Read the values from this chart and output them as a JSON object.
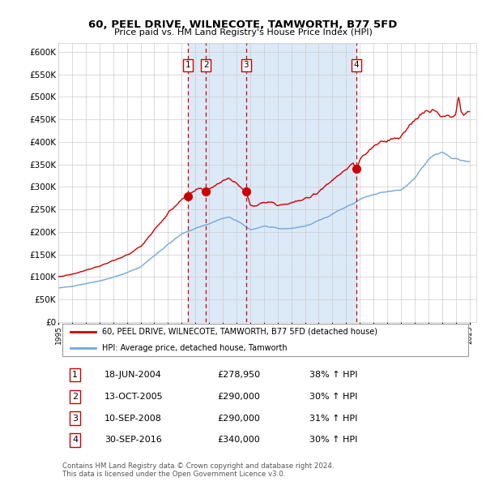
{
  "title": "60, PEEL DRIVE, WILNECOTE, TAMWORTH, B77 5FD",
  "subtitle": "Price paid vs. HM Land Registry's House Price Index (HPI)",
  "ylabel_ticks": [
    "£0",
    "£50K",
    "£100K",
    "£150K",
    "£200K",
    "£250K",
    "£300K",
    "£350K",
    "£400K",
    "£450K",
    "£500K",
    "£550K",
    "£600K"
  ],
  "ylim": [
    0,
    620000
  ],
  "yticks": [
    0,
    50000,
    100000,
    150000,
    200000,
    250000,
    300000,
    350000,
    400000,
    450000,
    500000,
    550000,
    600000
  ],
  "legend_line1": "60, PEEL DRIVE, WILNECOTE, TAMWORTH, B77 5FD (detached house)",
  "legend_line2": "HPI: Average price, detached house, Tamworth",
  "transactions": [
    {
      "num": 1,
      "date": "18-JUN-2004",
      "price": 278950,
      "pct": "38%",
      "dir": "↑"
    },
    {
      "num": 2,
      "date": "13-OCT-2005",
      "price": 290000,
      "pct": "30%",
      "dir": "↑"
    },
    {
      "num": 3,
      "date": "10-SEP-2008",
      "price": 290000,
      "pct": "31%",
      "dir": "↑"
    },
    {
      "num": 4,
      "date": "30-SEP-2016",
      "price": 340000,
      "pct": "30%",
      "dir": "↑"
    }
  ],
  "transaction_dates_decimal": [
    2004.46,
    2005.78,
    2008.69,
    2016.75
  ],
  "hpi_color": "#6fa8dc",
  "price_color": "#cc0000",
  "shaded_region_color": "#dce9f7",
  "dashed_line_color": "#cc0000",
  "background_color": "#ffffff",
  "grid_color": "#cccccc",
  "footer": "Contains HM Land Registry data © Crown copyright and database right 2024.\nThis data is licensed under the Open Government Licence v3.0.",
  "hpi_keypoints": [
    [
      1995.0,
      75000
    ],
    [
      1996.0,
      79000
    ],
    [
      1997.0,
      85000
    ],
    [
      1998.0,
      91000
    ],
    [
      1999.0,
      99000
    ],
    [
      2000.0,
      109000
    ],
    [
      2001.0,
      122000
    ],
    [
      2002.0,
      147000
    ],
    [
      2003.0,
      172000
    ],
    [
      2004.0,
      195000
    ],
    [
      2005.0,
      208000
    ],
    [
      2006.0,
      218000
    ],
    [
      2007.0,
      230000
    ],
    [
      2007.5,
      232000
    ],
    [
      2008.0,
      225000
    ],
    [
      2008.5,
      215000
    ],
    [
      2009.0,
      205000
    ],
    [
      2009.5,
      208000
    ],
    [
      2010.0,
      213000
    ],
    [
      2010.5,
      210000
    ],
    [
      2011.0,
      207000
    ],
    [
      2011.5,
      207000
    ],
    [
      2012.0,
      208000
    ],
    [
      2012.5,
      210000
    ],
    [
      2013.0,
      213000
    ],
    [
      2013.5,
      218000
    ],
    [
      2014.0,
      225000
    ],
    [
      2014.5,
      232000
    ],
    [
      2015.0,
      240000
    ],
    [
      2015.5,
      248000
    ],
    [
      2016.0,
      255000
    ],
    [
      2016.5,
      262000
    ],
    [
      2017.0,
      272000
    ],
    [
      2017.5,
      278000
    ],
    [
      2018.0,
      282000
    ],
    [
      2018.5,
      286000
    ],
    [
      2019.0,
      289000
    ],
    [
      2019.5,
      291000
    ],
    [
      2020.0,
      293000
    ],
    [
      2020.5,
      305000
    ],
    [
      2021.0,
      320000
    ],
    [
      2021.5,
      340000
    ],
    [
      2022.0,
      360000
    ],
    [
      2022.5,
      372000
    ],
    [
      2023.0,
      375000
    ],
    [
      2023.5,
      368000
    ],
    [
      2024.0,
      362000
    ],
    [
      2024.5,
      358000
    ],
    [
      2025.0,
      355000
    ]
  ],
  "red_keypoints": [
    [
      1995.0,
      100000
    ],
    [
      1996.0,
      106000
    ],
    [
      1997.0,
      115000
    ],
    [
      1998.0,
      124000
    ],
    [
      1999.0,
      135000
    ],
    [
      2000.0,
      148000
    ],
    [
      2001.0,
      167000
    ],
    [
      2002.0,
      204000
    ],
    [
      2003.0,
      240000
    ],
    [
      2003.5,
      258000
    ],
    [
      2004.0,
      270000
    ],
    [
      2004.46,
      278950
    ],
    [
      2004.7,
      285000
    ],
    [
      2005.0,
      290000
    ],
    [
      2005.4,
      298000
    ],
    [
      2005.78,
      290000
    ],
    [
      2006.0,
      295000
    ],
    [
      2006.5,
      305000
    ],
    [
      2007.0,
      315000
    ],
    [
      2007.5,
      318000
    ],
    [
      2008.0,
      308000
    ],
    [
      2008.5,
      295000
    ],
    [
      2008.69,
      290000
    ],
    [
      2009.0,
      258000
    ],
    [
      2009.5,
      260000
    ],
    [
      2010.0,
      268000
    ],
    [
      2010.5,
      265000
    ],
    [
      2011.0,
      260000
    ],
    [
      2011.5,
      262000
    ],
    [
      2012.0,
      265000
    ],
    [
      2012.5,
      268000
    ],
    [
      2013.0,
      272000
    ],
    [
      2013.5,
      280000
    ],
    [
      2014.0,
      290000
    ],
    [
      2014.5,
      302000
    ],
    [
      2015.0,
      315000
    ],
    [
      2015.5,
      328000
    ],
    [
      2016.0,
      340000
    ],
    [
      2016.5,
      350000
    ],
    [
      2016.75,
      340000
    ],
    [
      2017.0,
      360000
    ],
    [
      2017.5,
      375000
    ],
    [
      2018.0,
      390000
    ],
    [
      2018.5,
      398000
    ],
    [
      2019.0,
      402000
    ],
    [
      2019.5,
      408000
    ],
    [
      2020.0,
      412000
    ],
    [
      2020.5,
      428000
    ],
    [
      2021.0,
      448000
    ],
    [
      2021.5,
      460000
    ],
    [
      2022.0,
      472000
    ],
    [
      2022.3,
      475000
    ],
    [
      2022.5,
      468000
    ],
    [
      2022.7,
      460000
    ],
    [
      2023.0,
      455000
    ],
    [
      2023.3,
      462000
    ],
    [
      2023.5,
      458000
    ],
    [
      2023.7,
      452000
    ],
    [
      2024.0,
      460000
    ],
    [
      2024.2,
      500000
    ],
    [
      2024.4,
      465000
    ],
    [
      2024.6,
      460000
    ],
    [
      2025.0,
      465000
    ]
  ]
}
